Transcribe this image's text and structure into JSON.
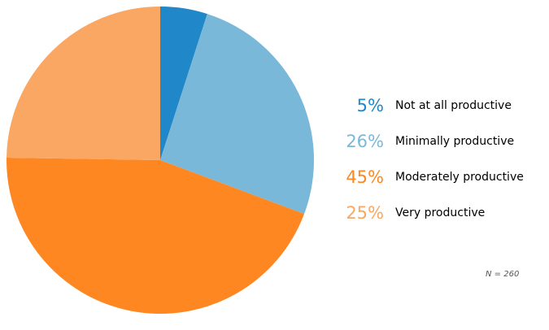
{
  "chart_data": {
    "type": "pie",
    "categories": [
      "Not at all productive",
      "Minimally productive",
      "Moderately productive",
      "Very productive"
    ],
    "values": [
      5,
      26,
      45,
      25
    ],
    "value_labels": [
      "5%",
      "26%",
      "45%",
      "25%"
    ],
    "colors": [
      "#2087c8",
      "#7ab8d9",
      "#fe8722",
      "#f9a762"
    ],
    "start_angle_deg": 0,
    "direction": "clockwise",
    "legend_position": "right",
    "note": "N = 260"
  }
}
